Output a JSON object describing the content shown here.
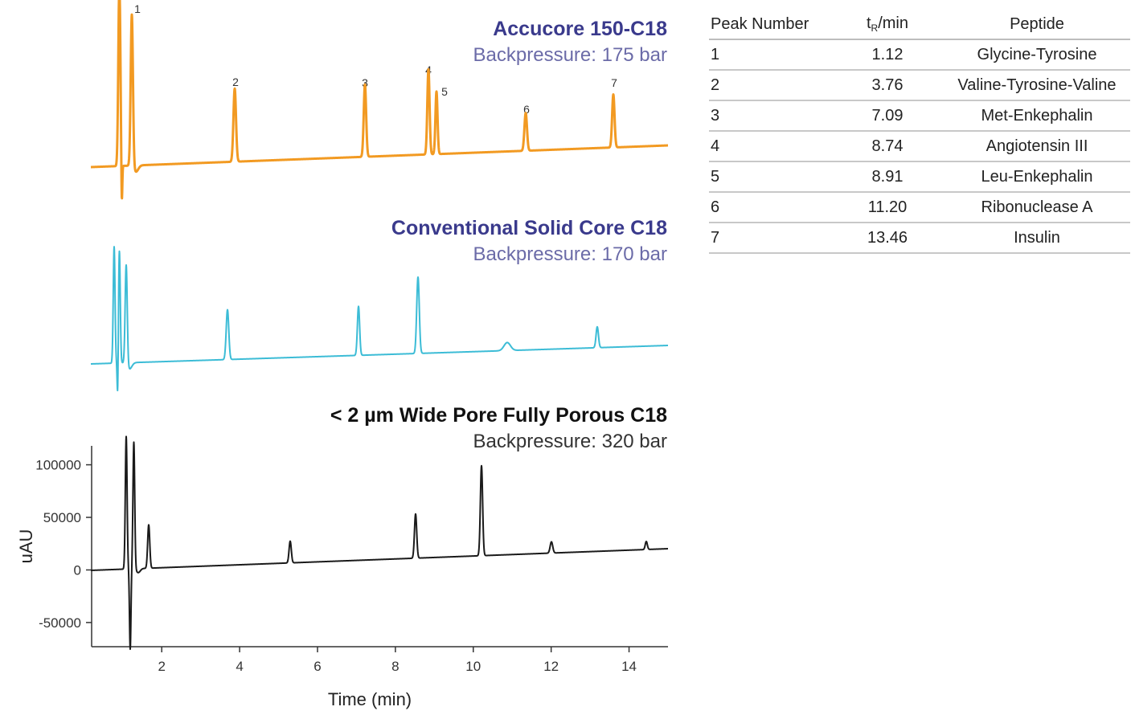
{
  "chart_data": [
    {
      "type": "line",
      "title": "Accucore 150-C18",
      "subtitle": "Backpressure: 175 bar",
      "color": "#f29a22",
      "title_color": "#3a3a8c",
      "subtitle_color": "#6b6ba8",
      "peak_labels": [
        "1",
        "2",
        "3",
        "4",
        "5",
        "6",
        "7"
      ]
    },
    {
      "type": "line",
      "title": "Conventional Solid Core C18",
      "subtitle": "Backpressure: 170 bar",
      "color": "#3cbcd6",
      "title_color": "#3a3a8c",
      "subtitle_color": "#6b6ba8"
    },
    {
      "type": "line",
      "title": "< 2 µm Wide Pore Fully Porous C18",
      "subtitle": "Backpressure: 320 bar",
      "color": "#1a1a1a",
      "title_color": "#111111",
      "subtitle_color": "#333333",
      "xlabel": "Time (min)",
      "ylabel": "uAU",
      "xlim": [
        0.2,
        15
      ],
      "ylim": [
        -73000,
        118000
      ],
      "xticks": [
        2,
        4,
        6,
        8,
        10,
        12,
        14
      ],
      "yticks": [
        100000,
        50000,
        0,
        -50000
      ],
      "ytick_labels": [
        "100000",
        "50000",
        "0",
        "-50000"
      ]
    }
  ],
  "table": {
    "headers": {
      "peak_number": "Peak Number",
      "rt_t": "t",
      "rt_sub": "R",
      "rt_unit": "/min",
      "peptide": "Peptide"
    },
    "rows": [
      {
        "peak": "1",
        "rt": "1.12",
        "peptide": "Glycine-Tyrosine"
      },
      {
        "peak": "2",
        "rt": "3.76",
        "peptide": "Valine-Tyrosine-Valine"
      },
      {
        "peak": "3",
        "rt": "7.09",
        "peptide": "Met-Enkephalin"
      },
      {
        "peak": "4",
        "rt": "8.74",
        "peptide": "Angiotensin III"
      },
      {
        "peak": "5",
        "rt": "8.91",
        "peptide": "Leu-Enkephalin"
      },
      {
        "peak": "6",
        "rt": "11.20",
        "peptide": "Ribonuclease A"
      },
      {
        "peak": "7",
        "rt": "13.46",
        "peptide": "Insulin"
      }
    ]
  }
}
